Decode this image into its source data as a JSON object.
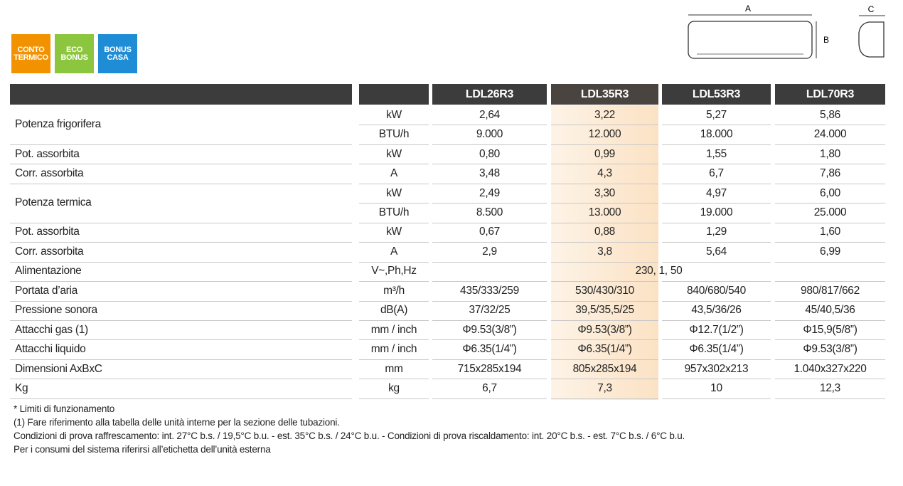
{
  "badges": [
    {
      "lines": [
        "CONTO",
        "TERMICO"
      ]
    },
    {
      "lines": [
        "ECO",
        "BONUS"
      ]
    },
    {
      "lines": [
        "BONUS",
        "CASA"
      ]
    }
  ],
  "diagram": {
    "labels": [
      "A",
      "B",
      "C"
    ]
  },
  "table": {
    "columns": [
      "LDL26R3",
      "LDL35R3",
      "LDL53R3",
      "LDL70R3"
    ],
    "rows": [
      {
        "label": "Potenza frigorifera",
        "lines": [
          {
            "unit": "kW",
            "values": [
              "2,64",
              "3,22",
              "5,27",
              "5,86"
            ]
          },
          {
            "unit": "BTU/h",
            "values": [
              "9.000",
              "12.000",
              "18.000",
              "24.000"
            ]
          }
        ]
      },
      {
        "label": "Pot. assorbita",
        "lines": [
          {
            "unit": "kW",
            "values": [
              "0,80",
              "0,99",
              "1,55",
              "1,80"
            ]
          }
        ]
      },
      {
        "label": "Corr. assorbita",
        "lines": [
          {
            "unit": "A",
            "values": [
              "3,48",
              "4,3",
              "6,7",
              "7,86"
            ]
          }
        ]
      },
      {
        "label": "Potenza termica",
        "lines": [
          {
            "unit": "kW",
            "values": [
              "2,49",
              "3,30",
              "4,97",
              "6,00"
            ]
          },
          {
            "unit": "BTU/h",
            "values": [
              "8.500",
              "13.000",
              "19.000",
              "25.000"
            ]
          }
        ]
      },
      {
        "label": "Pot. assorbita",
        "lines": [
          {
            "unit": "kW",
            "values": [
              "0,67",
              "0,88",
              "1,29",
              "1,60"
            ]
          }
        ]
      },
      {
        "label": "Corr. assorbita",
        "lines": [
          {
            "unit": "A",
            "values": [
              "2,9",
              "3,8",
              "5,64",
              "6,99"
            ]
          }
        ]
      },
      {
        "label": "Alimentazione",
        "lines": [
          {
            "unit": "V~,Ph,Hz",
            "values": [
              "230, 1, 50"
            ]
          }
        ]
      },
      {
        "label": "Portata d’aria",
        "lines": [
          {
            "unit": "m³/h",
            "values": [
              "435/333/259",
              "530/430/310",
              "840/680/540",
              "980/817/662"
            ]
          }
        ]
      },
      {
        "label": "Pressione sonora",
        "lines": [
          {
            "unit": "dB(A)",
            "values": [
              "37/32/25",
              "39,5/35,5/25",
              "43,5/36/26",
              "45/40,5/36"
            ]
          }
        ]
      },
      {
        "label": "Attacchi gas  (1)",
        "lines": [
          {
            "unit": "mm / inch",
            "values": [
              "Φ9.53(3/8”)",
              "Φ9.53(3/8”)",
              "Φ12.7(1/2”)",
              "Φ15,9(5/8”)"
            ]
          }
        ]
      },
      {
        "label": "Attacchi liquido",
        "lines": [
          {
            "unit": "mm / inch",
            "values": [
              "Φ6.35(1/4”)",
              "Φ6.35(1/4”)",
              "Φ6.35(1/4”)",
              "Φ9.53(3/8”)"
            ]
          }
        ]
      },
      {
        "label": "Dimensioni AxBxC",
        "lines": [
          {
            "unit": "mm",
            "values": [
              "715x285x194",
              "805x285x194",
              "957x302x213",
              "1.040x327x220"
            ]
          }
        ]
      },
      {
        "label": "Kg",
        "lines": [
          {
            "unit": "kg",
            "values": [
              "6,7",
              "7,3",
              "10",
              "12,3"
            ]
          }
        ]
      }
    ]
  },
  "footnotes": [
    "* Limiti di funzionamento",
    "(1) Fare riferimento alla tabella delle unità interne per la sezione delle tubazioni.",
    "Condizioni di prova raffrescamento: int. 27°C b.s. / 19,5°C b.u. - est. 35°C b.s. / 24°C b.u. - Condizioni di prova riscaldamento: int. 20°C b.s. - est. 7°C b.s. / 6°C b.u.",
    "Per i consumi del sistema riferirsi all’etichetta dell’unità esterna"
  ]
}
